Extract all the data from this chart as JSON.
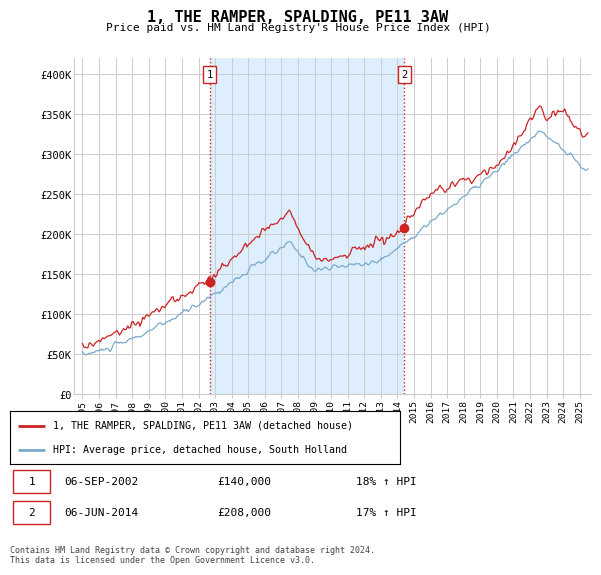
{
  "title": "1, THE RAMPER, SPALDING, PE11 3AW",
  "subtitle": "Price paid vs. HM Land Registry's House Price Index (HPI)",
  "ylabel_ticks": [
    "£0",
    "£50K",
    "£100K",
    "£150K",
    "£200K",
    "£250K",
    "£300K",
    "£350K",
    "£400K"
  ],
  "ytick_values": [
    0,
    50000,
    100000,
    150000,
    200000,
    250000,
    300000,
    350000,
    400000
  ],
  "ylim": [
    0,
    420000
  ],
  "xlim_start": 1994.5,
  "xlim_end": 2025.7,
  "sale1_year": 2002.67,
  "sale1_price": 140000,
  "sale2_year": 2014.42,
  "sale2_price": 208000,
  "sale1_label": "1",
  "sale2_label": "2",
  "legend_line1": "1, THE RAMPER, SPALDING, PE11 3AW (detached house)",
  "legend_line2": "HPI: Average price, detached house, South Holland",
  "line_color_red": "#cc2222",
  "line_color_blue": "#7aaacc",
  "shade_color": "#ddeeff",
  "vline_color": "#cc2222",
  "background_color": "#ffffff",
  "grid_color": "#cccccc",
  "xtick_years": [
    1995,
    1996,
    1997,
    1998,
    1999,
    2000,
    2001,
    2002,
    2003,
    2004,
    2005,
    2006,
    2007,
    2008,
    2009,
    2010,
    2011,
    2012,
    2013,
    2014,
    2015,
    2016,
    2017,
    2018,
    2019,
    2020,
    2021,
    2022,
    2023,
    2024,
    2025
  ],
  "footer": "Contains HM Land Registry data © Crown copyright and database right 2024.\nThis data is licensed under the Open Government Licence v3.0."
}
